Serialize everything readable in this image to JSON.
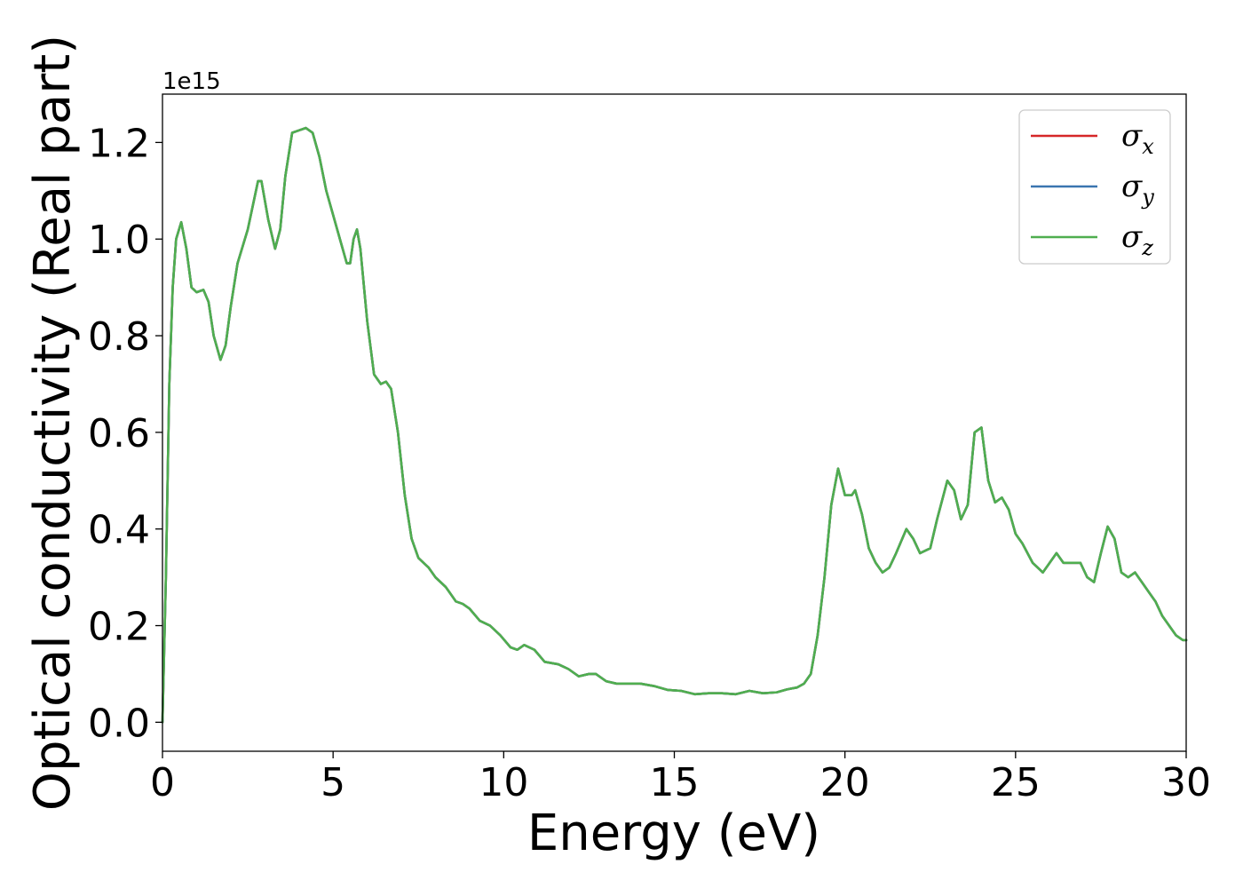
{
  "chart_data": {
    "type": "line",
    "title": "",
    "xlabel": "Energy (eV)",
    "ylabel": "Optical conductivity (Real part)",
    "y_offset_label": "1e15",
    "xlim": [
      0,
      30
    ],
    "ylim": [
      -0.06,
      1.3
    ],
    "xticks": [
      0,
      5,
      10,
      15,
      20,
      25,
      30
    ],
    "xtick_labels": [
      "0",
      "5",
      "10",
      "15",
      "20",
      "25",
      "30"
    ],
    "yticks": [
      0.0,
      0.2,
      0.4,
      0.6,
      0.8,
      1.0,
      1.2
    ],
    "ytick_labels": [
      "0.0",
      "0.2",
      "0.4",
      "0.6",
      "0.8",
      "1.0",
      "1.2"
    ],
    "grid": false,
    "legend_position": "top-right",
    "series": [
      {
        "name": "σx",
        "legend_main": "σ",
        "legend_sub": "x",
        "color": "#d62728",
        "x": [
          0,
          0.1,
          0.2,
          0.3,
          0.4,
          0.55,
          0.7,
          0.85,
          1.0,
          1.2,
          1.35,
          1.5,
          1.7,
          1.85,
          2.0,
          2.2,
          2.5,
          2.8,
          2.9,
          3.1,
          3.3,
          3.45,
          3.6,
          3.8,
          4.0,
          4.2,
          4.4,
          4.6,
          4.8,
          5.0,
          5.2,
          5.4,
          5.5,
          5.6,
          5.7,
          5.8,
          6.0,
          6.2,
          6.4,
          6.55,
          6.7,
          6.9,
          7.1,
          7.3,
          7.5,
          7.8,
          8.0,
          8.3,
          8.6,
          8.8,
          9.0,
          9.3,
          9.6,
          9.9,
          10.2,
          10.4,
          10.6,
          10.9,
          11.2,
          11.6,
          11.9,
          12.2,
          12.5,
          12.7,
          13.0,
          13.3,
          13.7,
          14.0,
          14.4,
          14.8,
          15.2,
          15.6,
          16.0,
          16.4,
          16.8,
          17.2,
          17.6,
          18.0,
          18.3,
          18.6,
          18.8,
          19.0,
          19.2,
          19.4,
          19.6,
          19.8,
          20.0,
          20.2,
          20.3,
          20.5,
          20.7,
          20.9,
          21.1,
          21.3,
          21.5,
          21.8,
          22.0,
          22.2,
          22.5,
          22.7,
          23.0,
          23.2,
          23.4,
          23.6,
          23.8,
          24.0,
          24.2,
          24.4,
          24.6,
          24.8,
          25.0,
          25.2,
          25.5,
          25.8,
          26.0,
          26.2,
          26.4,
          26.7,
          26.9,
          27.1,
          27.3,
          27.5,
          27.7,
          27.9,
          28.1,
          28.3,
          28.5,
          28.7,
          28.9,
          29.1,
          29.3,
          29.5,
          29.7,
          29.9,
          30.0
        ],
        "y": [
          0.0,
          0.3,
          0.7,
          0.9,
          1.0,
          1.035,
          0.98,
          0.9,
          0.89,
          0.895,
          0.87,
          0.8,
          0.75,
          0.78,
          0.86,
          0.95,
          1.02,
          1.12,
          1.12,
          1.04,
          0.98,
          1.02,
          1.13,
          1.22,
          1.225,
          1.23,
          1.22,
          1.17,
          1.1,
          1.05,
          1.0,
          0.95,
          0.95,
          1.0,
          1.02,
          0.98,
          0.83,
          0.72,
          0.7,
          0.705,
          0.69,
          0.6,
          0.47,
          0.38,
          0.34,
          0.32,
          0.3,
          0.28,
          0.25,
          0.245,
          0.235,
          0.21,
          0.2,
          0.18,
          0.155,
          0.15,
          0.16,
          0.15,
          0.125,
          0.12,
          0.11,
          0.095,
          0.1,
          0.1,
          0.085,
          0.08,
          0.08,
          0.08,
          0.075,
          0.067,
          0.065,
          0.058,
          0.06,
          0.06,
          0.058,
          0.065,
          0.06,
          0.062,
          0.068,
          0.072,
          0.08,
          0.1,
          0.18,
          0.3,
          0.45,
          0.525,
          0.47,
          0.47,
          0.48,
          0.43,
          0.36,
          0.33,
          0.31,
          0.32,
          0.35,
          0.4,
          0.38,
          0.35,
          0.36,
          0.42,
          0.5,
          0.48,
          0.42,
          0.45,
          0.6,
          0.61,
          0.5,
          0.455,
          0.465,
          0.44,
          0.39,
          0.37,
          0.33,
          0.31,
          0.33,
          0.35,
          0.33,
          0.33,
          0.33,
          0.3,
          0.29,
          0.35,
          0.405,
          0.38,
          0.31,
          0.3,
          0.31,
          0.29,
          0.27,
          0.25,
          0.22,
          0.2,
          0.18,
          0.17,
          0.17
        ]
      },
      {
        "name": "σy",
        "legend_main": "σ",
        "legend_sub": "y",
        "color": "#3a75b0",
        "same_as": "σx"
      },
      {
        "name": "σz",
        "legend_main": "σ",
        "legend_sub": "z",
        "color": "#4fae4f",
        "same_as": "σx"
      }
    ]
  }
}
